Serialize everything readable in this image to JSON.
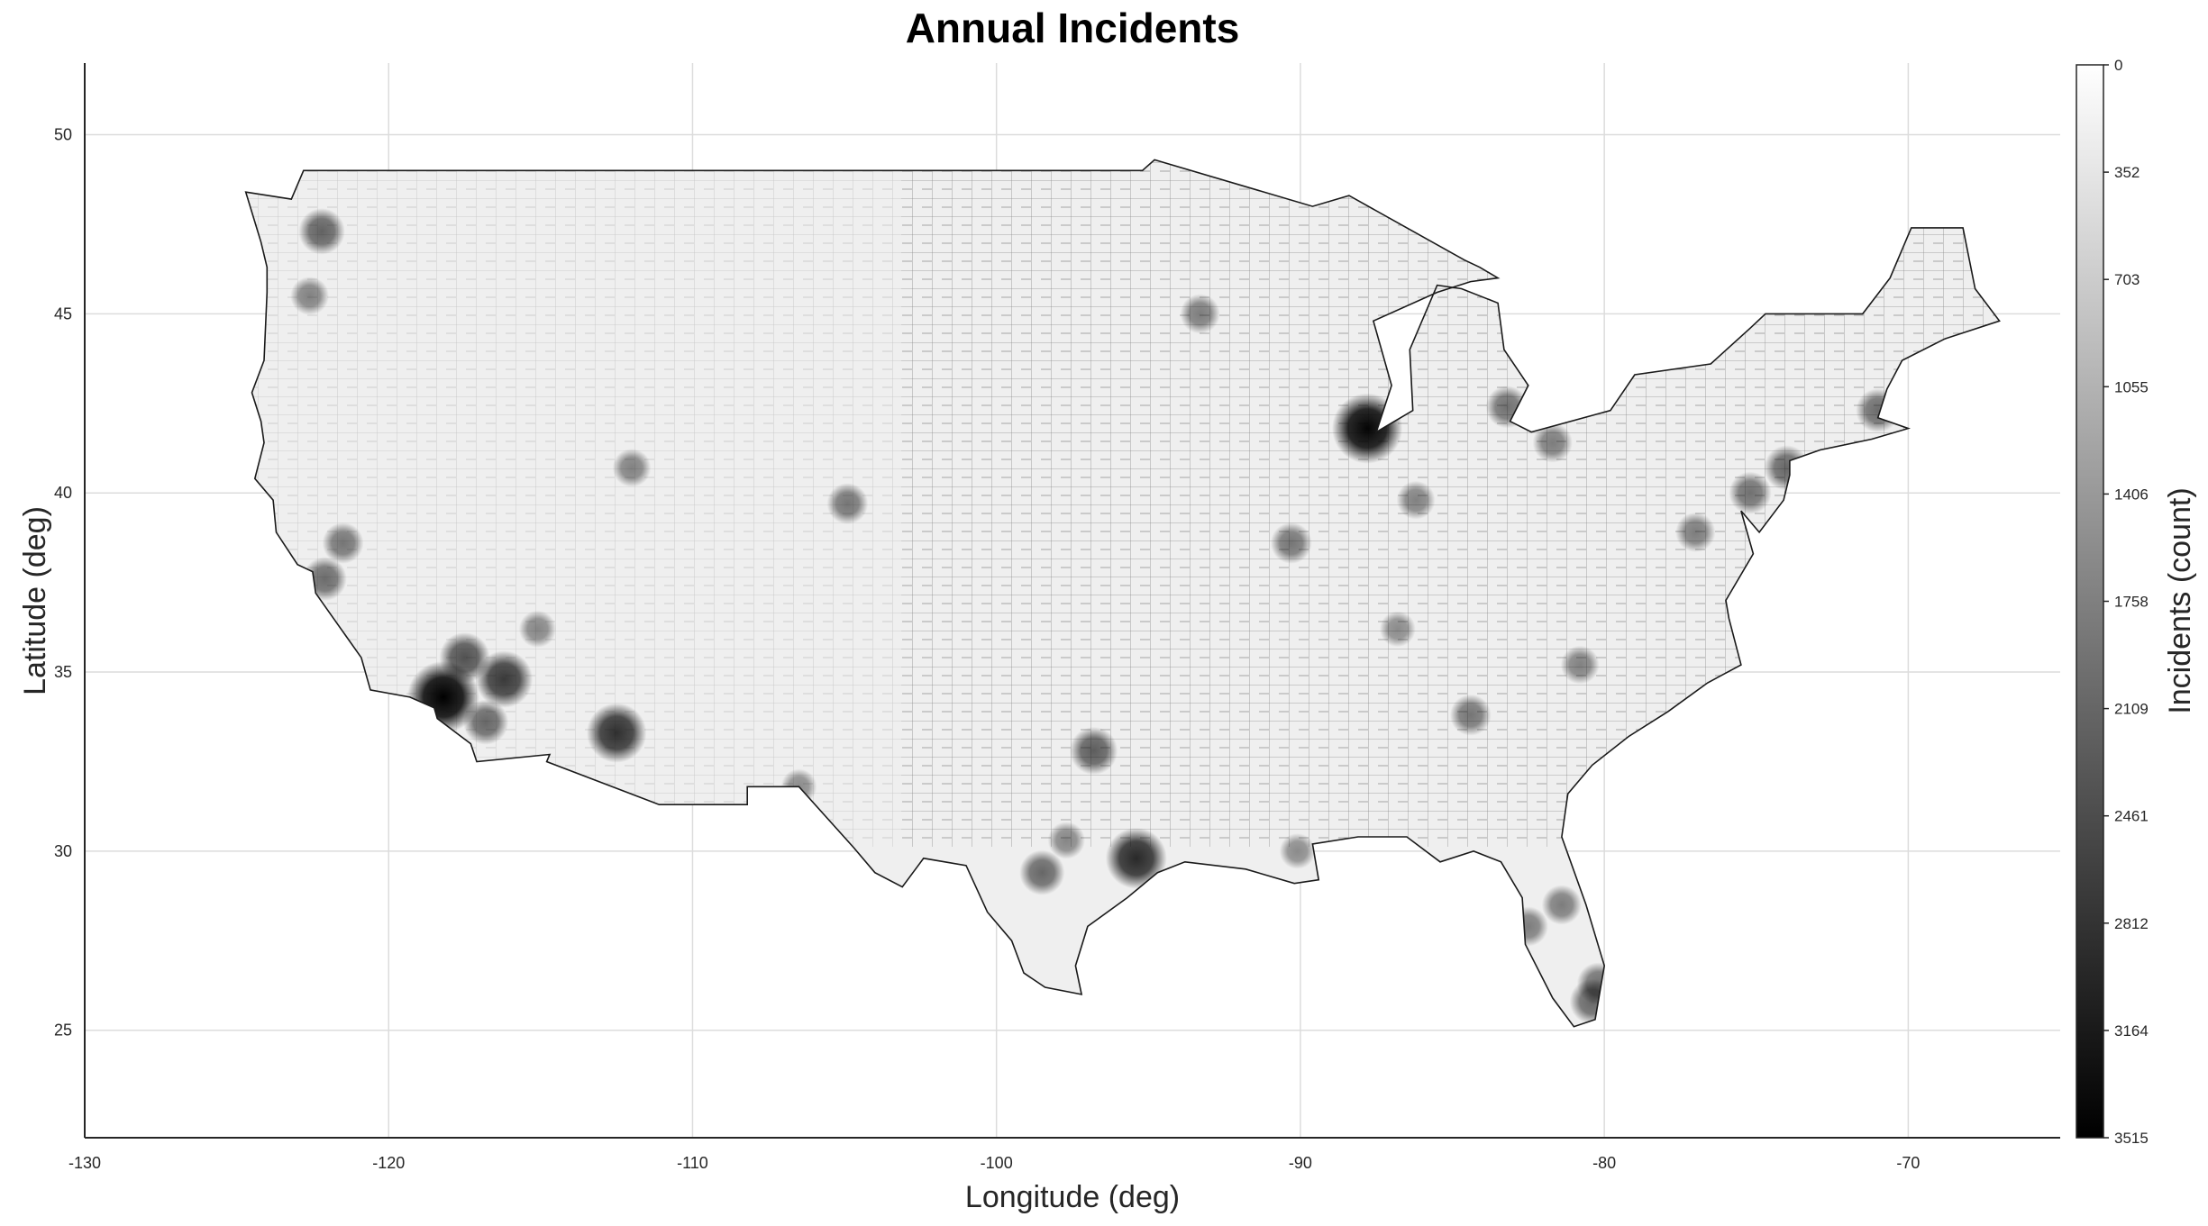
{
  "title": "Annual Incidents",
  "xlabel": "Longitude (deg)",
  "ylabel": "Latitude (deg)",
  "colorbar": {
    "label": "Incidents (count)",
    "ticks": [
      "0",
      "352",
      "703",
      "1055",
      "1406",
      "1758",
      "2109",
      "2461",
      "2812",
      "3164",
      "3515"
    ],
    "min": 0,
    "max": 3515,
    "colormap": "gray-reversed"
  },
  "chart_data": {
    "type": "heatmap",
    "map": "contiguous-us-counties",
    "xlim": [
      -130,
      -65
    ],
    "ylim": [
      22,
      52
    ],
    "x_ticks": [
      "-130",
      "-120",
      "-110",
      "-100",
      "-90",
      "-80",
      "-70"
    ],
    "y_ticks": [
      "25",
      "30",
      "35",
      "40",
      "45",
      "50"
    ],
    "x_tick_values": [
      -130,
      -120,
      -110,
      -100,
      -90,
      -80,
      -70
    ],
    "y_tick_values": [
      25,
      30,
      35,
      40,
      45,
      50
    ],
    "grid": true,
    "hotspots": [
      {
        "lon": -118.2,
        "lat": 34.3,
        "value": 3515
      },
      {
        "lon": -87.8,
        "lat": 41.8,
        "value": 3400
      },
      {
        "lon": -95.4,
        "lat": 29.8,
        "value": 2700
      },
      {
        "lon": -112.5,
        "lat": 33.3,
        "value": 2600
      },
      {
        "lon": -116.2,
        "lat": 34.8,
        "value": 2400
      },
      {
        "lon": -117.5,
        "lat": 35.4,
        "value": 1900
      },
      {
        "lon": -116.8,
        "lat": 33.6,
        "value": 1500
      },
      {
        "lon": -122.2,
        "lat": 47.3,
        "value": 1600
      },
      {
        "lon": -96.8,
        "lat": 32.8,
        "value": 1700
      },
      {
        "lon": -98.5,
        "lat": 29.4,
        "value": 1500
      },
      {
        "lon": -80.4,
        "lat": 25.8,
        "value": 1500
      },
      {
        "lon": -80.2,
        "lat": 26.3,
        "value": 1300
      },
      {
        "lon": -83.2,
        "lat": 42.4,
        "value": 1300
      },
      {
        "lon": -84.4,
        "lat": 33.8,
        "value": 1200
      },
      {
        "lon": -74.0,
        "lat": 40.7,
        "value": 1500
      },
      {
        "lon": -75.2,
        "lat": 40.0,
        "value": 1300
      },
      {
        "lon": -71.0,
        "lat": 42.3,
        "value": 1400
      },
      {
        "lon": -122.1,
        "lat": 37.6,
        "value": 1400
      },
      {
        "lon": -121.5,
        "lat": 38.6,
        "value": 1200
      },
      {
        "lon": -90.3,
        "lat": 38.6,
        "value": 1200
      },
      {
        "lon": -93.3,
        "lat": 45.0,
        "value": 1100
      },
      {
        "lon": -104.9,
        "lat": 39.7,
        "value": 1200
      },
      {
        "lon": -81.7,
        "lat": 41.4,
        "value": 1100
      },
      {
        "lon": -77.0,
        "lat": 38.9,
        "value": 1100
      },
      {
        "lon": -86.2,
        "lat": 39.8,
        "value": 1000
      },
      {
        "lon": -80.8,
        "lat": 35.2,
        "value": 1000
      },
      {
        "lon": -82.5,
        "lat": 27.9,
        "value": 1100
      },
      {
        "lon": -81.4,
        "lat": 28.5,
        "value": 1100
      },
      {
        "lon": -122.6,
        "lat": 45.5,
        "value": 1000
      },
      {
        "lon": -112.0,
        "lat": 40.7,
        "value": 1000
      },
      {
        "lon": -115.1,
        "lat": 36.2,
        "value": 900
      },
      {
        "lon": -106.5,
        "lat": 31.8,
        "value": 800
      },
      {
        "lon": -97.7,
        "lat": 30.3,
        "value": 900
      },
      {
        "lon": -90.1,
        "lat": 30.0,
        "value": 800
      },
      {
        "lon": -86.8,
        "lat": 36.2,
        "value": 800
      }
    ]
  }
}
